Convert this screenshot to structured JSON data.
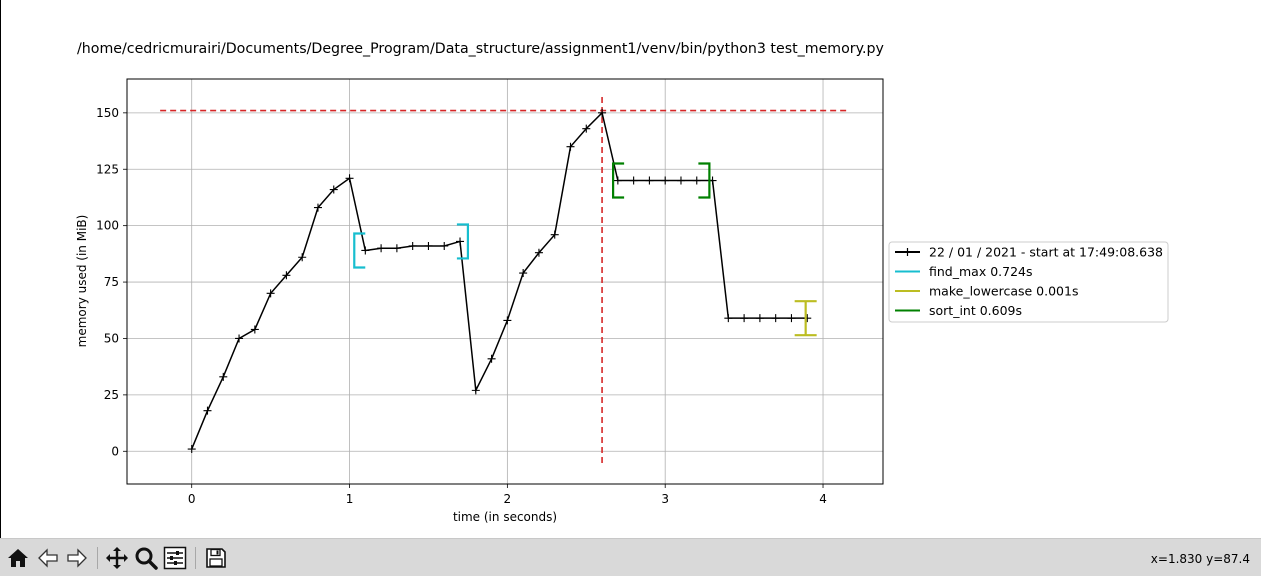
{
  "chart_data": {
    "type": "line",
    "title": "/home/cedricmurairi/Documents/Degree_Program/Data_structure/assignment1/venv/bin/python3 test_memory.py",
    "xlabel": "time (in seconds)",
    "ylabel": "memory used (in MiB)",
    "xlim": [
      -0.41,
      4.38
    ],
    "ylim": [
      -14.5,
      165
    ],
    "xticks": [
      0,
      1,
      2,
      3,
      4
    ],
    "yticks": [
      0,
      25,
      50,
      75,
      100,
      125,
      150
    ],
    "grid": true,
    "legend_position": "center-right outside",
    "series": [
      {
        "name": "22 / 01 / 2021 - start at 17:49:08.638",
        "color": "#000000",
        "x": [
          0,
          0.1,
          0.2,
          0.3,
          0.4,
          0.5,
          0.6,
          0.7,
          0.8,
          0.9,
          1.0,
          1.1,
          1.2,
          1.3,
          1.4,
          1.5,
          1.6,
          1.7,
          1.8,
          1.9,
          2.0,
          2.1,
          2.2,
          2.3,
          2.4,
          2.5,
          2.6,
          2.7,
          2.8,
          2.9,
          3.0,
          3.1,
          3.2,
          3.3,
          3.4,
          3.5,
          3.6,
          3.7,
          3.8,
          3.9
        ],
        "y": [
          1,
          18,
          33,
          50,
          54,
          70,
          78,
          86,
          108,
          116,
          121,
          89,
          90,
          90,
          91,
          91,
          91,
          93,
          27,
          41,
          58,
          79,
          88,
          96,
          135,
          143,
          150,
          120,
          120,
          120,
          120,
          120,
          120,
          120,
          59,
          59,
          59,
          59,
          59,
          59
        ]
      }
    ],
    "brackets": [
      {
        "name": "find_max 0.724s",
        "color": "#17becf",
        "start": 1.03,
        "end": 1.75,
        "start_y": 89,
        "end_y": 93
      },
      {
        "name": "make_lowercase 0.001s",
        "color": "#bcbd22",
        "start": 3.89,
        "end": 3.89,
        "start_y": 59,
        "end_y": 59
      },
      {
        "name": "sort_int 0.609s",
        "color": "#008000",
        "start": 2.67,
        "end": 3.28,
        "start_y": 120,
        "end_y": 120
      }
    ],
    "peak": {
      "x": 2.6,
      "y": 151,
      "color": "#d62728"
    }
  },
  "toolbar": {
    "buttons": [
      "home-icon",
      "back-icon",
      "forward-icon",
      "pan-icon",
      "zoom-icon",
      "configure-icon",
      "save-icon"
    ],
    "coords_text": "x=1.830 y=87.4"
  }
}
